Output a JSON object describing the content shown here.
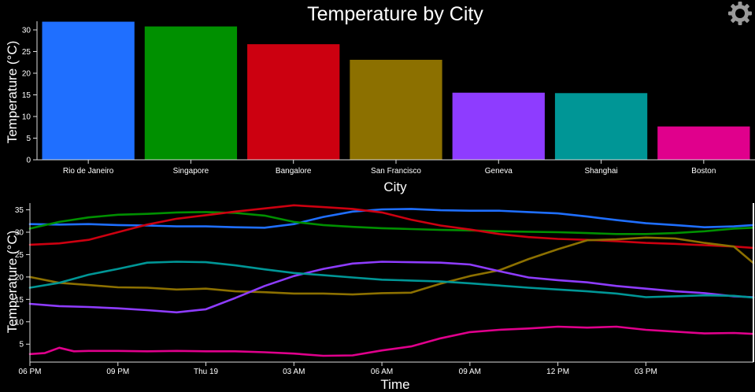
{
  "title": "Temperature by City",
  "settings": {
    "icon": "gear-icon"
  },
  "chart_data": [
    {
      "type": "bar",
      "xlabel": "City",
      "ylabel": "Temperature (°C)",
      "categories": [
        "Rio de Janeiro",
        "Singapore",
        "Bangalore",
        "San Francisco",
        "Geneva",
        "Shanghai",
        "Boston"
      ],
      "values": [
        31.9,
        30.8,
        26.7,
        23.1,
        15.5,
        15.4,
        7.7
      ],
      "colors": [
        "#1f6fff",
        "#009000",
        "#cc0010",
        "#8c7000",
        "#8e3cff",
        "#009696",
        "#e0008c"
      ],
      "ylim": [
        0,
        32
      ],
      "yticks": [
        0,
        5,
        10,
        15,
        20,
        25,
        30
      ],
      "grid": false
    },
    {
      "type": "line",
      "xlabel": "Time",
      "ylabel": "Temperature (°C)",
      "ylim": [
        1,
        36.5
      ],
      "yticks": [
        5,
        10,
        15,
        20,
        25,
        30,
        35
      ],
      "xlim": [
        "2018-04-18T18:00",
        "2018-04-19T18:40"
      ],
      "xticks": [
        {
          "t": "2018-04-18T18:00",
          "label": "06 PM"
        },
        {
          "t": "2018-04-18T21:00",
          "label": "09 PM"
        },
        {
          "t": "2018-04-19T00:00",
          "label": "Thu 19"
        },
        {
          "t": "2018-04-19T03:00",
          "label": "03 AM"
        },
        {
          "t": "2018-04-19T06:00",
          "label": "06 AM"
        },
        {
          "t": "2018-04-19T09:00",
          "label": "09 AM"
        },
        {
          "t": "2018-04-19T12:00",
          "label": "12 PM"
        },
        {
          "t": "2018-04-19T15:00",
          "label": "03 PM"
        }
      ],
      "grid": false,
      "series": [
        {
          "color": "#1f6fff",
          "points": [
            [
              "2018-04-18T18:00",
              31.8
            ],
            [
              "2018-04-18T19:00",
              31.7
            ],
            [
              "2018-04-18T20:00",
              31.8
            ],
            [
              "2018-04-18T21:00",
              31.6
            ],
            [
              "2018-04-18T22:00",
              31.5
            ],
            [
              "2018-04-18T23:00",
              31.3
            ],
            [
              "2018-04-19T00:00",
              31.3
            ],
            [
              "2018-04-19T01:00",
              31.1
            ],
            [
              "2018-04-19T02:00",
              31.0
            ],
            [
              "2018-04-19T03:00",
              31.8
            ],
            [
              "2018-04-19T04:00",
              33.4
            ],
            [
              "2018-04-19T05:00",
              34.6
            ],
            [
              "2018-04-19T06:00",
              35.1
            ],
            [
              "2018-04-19T07:00",
              35.2
            ],
            [
              "2018-04-19T08:00",
              34.9
            ],
            [
              "2018-04-19T09:00",
              34.8
            ],
            [
              "2018-04-19T10:00",
              34.8
            ],
            [
              "2018-04-19T11:00",
              34.5
            ],
            [
              "2018-04-19T12:00",
              34.2
            ],
            [
              "2018-04-19T13:00",
              33.5
            ],
            [
              "2018-04-19T14:00",
              32.7
            ],
            [
              "2018-04-19T15:00",
              32.0
            ],
            [
              "2018-04-19T16:00",
              31.6
            ],
            [
              "2018-04-19T17:00",
              31.1
            ],
            [
              "2018-04-19T18:00",
              31.3
            ],
            [
              "2018-04-19T18:40",
              31.6
            ]
          ]
        },
        {
          "color": "#009000",
          "points": [
            [
              "2018-04-18T18:00",
              30.8
            ],
            [
              "2018-04-18T19:00",
              32.3
            ],
            [
              "2018-04-18T20:00",
              33.3
            ],
            [
              "2018-04-18T21:00",
              33.9
            ],
            [
              "2018-04-18T22:00",
              34.1
            ],
            [
              "2018-04-18T23:00",
              34.4
            ],
            [
              "2018-04-19T00:00",
              34.5
            ],
            [
              "2018-04-19T01:00",
              34.3
            ],
            [
              "2018-04-19T02:00",
              33.7
            ],
            [
              "2018-04-19T03:00",
              32.3
            ],
            [
              "2018-04-19T04:00",
              31.6
            ],
            [
              "2018-04-19T05:00",
              31.2
            ],
            [
              "2018-04-19T06:00",
              30.9
            ],
            [
              "2018-04-19T07:00",
              30.7
            ],
            [
              "2018-04-19T08:00",
              30.5
            ],
            [
              "2018-04-19T09:00",
              30.4
            ],
            [
              "2018-04-19T10:00",
              30.2
            ],
            [
              "2018-04-19T11:00",
              30.1
            ],
            [
              "2018-04-19T12:00",
              30.0
            ],
            [
              "2018-04-19T13:00",
              29.8
            ],
            [
              "2018-04-19T14:00",
              29.6
            ],
            [
              "2018-04-19T15:00",
              29.6
            ],
            [
              "2018-04-19T16:00",
              29.8
            ],
            [
              "2018-04-19T17:00",
              30.2
            ],
            [
              "2018-04-19T18:00",
              30.8
            ],
            [
              "2018-04-19T18:40",
              31.0
            ]
          ]
        },
        {
          "color": "#cc0010",
          "points": [
            [
              "2018-04-18T18:00",
              27.2
            ],
            [
              "2018-04-18T19:00",
              27.5
            ],
            [
              "2018-04-18T20:00",
              28.3
            ],
            [
              "2018-04-18T21:00",
              30.0
            ],
            [
              "2018-04-18T22:00",
              31.7
            ],
            [
              "2018-04-18T23:00",
              33.0
            ],
            [
              "2018-04-19T00:00",
              33.8
            ],
            [
              "2018-04-19T01:00",
              34.6
            ],
            [
              "2018-04-19T02:00",
              35.3
            ],
            [
              "2018-04-19T03:00",
              36.0
            ],
            [
              "2018-04-19T04:00",
              35.6
            ],
            [
              "2018-04-19T05:00",
              35.2
            ],
            [
              "2018-04-19T06:00",
              34.4
            ],
            [
              "2018-04-19T07:00",
              32.8
            ],
            [
              "2018-04-19T08:00",
              31.5
            ],
            [
              "2018-04-19T09:00",
              30.6
            ],
            [
              "2018-04-19T10:00",
              29.6
            ],
            [
              "2018-04-19T11:00",
              28.9
            ],
            [
              "2018-04-19T12:00",
              28.5
            ],
            [
              "2018-04-19T13:00",
              28.3
            ],
            [
              "2018-04-19T14:00",
              28.0
            ],
            [
              "2018-04-19T15:00",
              27.6
            ],
            [
              "2018-04-19T16:00",
              27.4
            ],
            [
              "2018-04-19T17:00",
              27.1
            ],
            [
              "2018-04-19T18:00",
              26.8
            ],
            [
              "2018-04-19T18:40",
              26.5
            ]
          ]
        },
        {
          "color": "#8c7000",
          "points": [
            [
              "2018-04-18T18:00",
              20.0
            ],
            [
              "2018-04-18T19:00",
              18.7
            ],
            [
              "2018-04-18T20:00",
              18.2
            ],
            [
              "2018-04-18T21:00",
              17.7
            ],
            [
              "2018-04-18T22:00",
              17.6
            ],
            [
              "2018-04-18T23:00",
              17.2
            ],
            [
              "2018-04-19T00:00",
              17.4
            ],
            [
              "2018-04-19T01:00",
              16.8
            ],
            [
              "2018-04-19T02:00",
              16.6
            ],
            [
              "2018-04-19T03:00",
              16.3
            ],
            [
              "2018-04-19T04:00",
              16.3
            ],
            [
              "2018-04-19T05:00",
              16.1
            ],
            [
              "2018-04-19T06:00",
              16.4
            ],
            [
              "2018-04-19T07:00",
              16.5
            ],
            [
              "2018-04-19T08:00",
              18.5
            ],
            [
              "2018-04-19T09:00",
              20.2
            ],
            [
              "2018-04-19T10:00",
              21.5
            ],
            [
              "2018-04-19T11:00",
              24.0
            ],
            [
              "2018-04-19T12:00",
              26.2
            ],
            [
              "2018-04-19T13:00",
              28.2
            ],
            [
              "2018-04-19T14:00",
              28.4
            ],
            [
              "2018-04-19T15:00",
              28.8
            ],
            [
              "2018-04-19T16:00",
              28.6
            ],
            [
              "2018-04-19T17:00",
              27.6
            ],
            [
              "2018-04-19T18:00",
              26.8
            ],
            [
              "2018-04-19T18:40",
              23.1
            ]
          ]
        },
        {
          "color": "#8e3cff",
          "points": [
            [
              "2018-04-18T18:00",
              14.0
            ],
            [
              "2018-04-18T19:00",
              13.5
            ],
            [
              "2018-04-18T20:00",
              13.3
            ],
            [
              "2018-04-18T21:00",
              13.0
            ],
            [
              "2018-04-18T22:00",
              12.6
            ],
            [
              "2018-04-18T23:00",
              12.1
            ],
            [
              "2018-04-19T00:00",
              12.8
            ],
            [
              "2018-04-19T01:00",
              15.3
            ],
            [
              "2018-04-19T02:00",
              18.0
            ],
            [
              "2018-04-19T03:00",
              20.2
            ],
            [
              "2018-04-19T04:00",
              21.8
            ],
            [
              "2018-04-19T05:00",
              23.0
            ],
            [
              "2018-04-19T06:00",
              23.4
            ],
            [
              "2018-04-19T07:00",
              23.3
            ],
            [
              "2018-04-19T08:00",
              23.2
            ],
            [
              "2018-04-19T09:00",
              22.8
            ],
            [
              "2018-04-19T10:00",
              21.3
            ],
            [
              "2018-04-19T11:00",
              19.9
            ],
            [
              "2018-04-19T12:00",
              19.3
            ],
            [
              "2018-04-19T13:00",
              18.8
            ],
            [
              "2018-04-19T14:00",
              18.0
            ],
            [
              "2018-04-19T15:00",
              17.4
            ],
            [
              "2018-04-19T16:00",
              16.8
            ],
            [
              "2018-04-19T17:00",
              16.4
            ],
            [
              "2018-04-19T18:00",
              15.7
            ],
            [
              "2018-04-19T18:40",
              15.5
            ]
          ]
        },
        {
          "color": "#009696",
          "points": [
            [
              "2018-04-18T18:00",
              17.6
            ],
            [
              "2018-04-18T19:00",
              18.7
            ],
            [
              "2018-04-18T20:00",
              20.5
            ],
            [
              "2018-04-18T21:00",
              21.8
            ],
            [
              "2018-04-18T22:00",
              23.2
            ],
            [
              "2018-04-18T23:00",
              23.4
            ],
            [
              "2018-04-19T00:00",
              23.3
            ],
            [
              "2018-04-19T01:00",
              22.6
            ],
            [
              "2018-04-19T02:00",
              21.7
            ],
            [
              "2018-04-19T03:00",
              20.9
            ],
            [
              "2018-04-19T04:00",
              20.4
            ],
            [
              "2018-04-19T05:00",
              19.9
            ],
            [
              "2018-04-19T06:00",
              19.4
            ],
            [
              "2018-04-19T07:00",
              19.2
            ],
            [
              "2018-04-19T08:00",
              19.0
            ],
            [
              "2018-04-19T09:00",
              18.6
            ],
            [
              "2018-04-19T10:00",
              18.1
            ],
            [
              "2018-04-19T11:00",
              17.6
            ],
            [
              "2018-04-19T12:00",
              17.2
            ],
            [
              "2018-04-19T13:00",
              16.8
            ],
            [
              "2018-04-19T14:00",
              16.3
            ],
            [
              "2018-04-19T15:00",
              15.5
            ],
            [
              "2018-04-19T16:00",
              15.7
            ],
            [
              "2018-04-19T17:00",
              15.9
            ],
            [
              "2018-04-19T18:00",
              15.8
            ],
            [
              "2018-04-19T18:40",
              15.4
            ]
          ]
        },
        {
          "color": "#e0008c",
          "points": [
            [
              "2018-04-18T18:00",
              2.8
            ],
            [
              "2018-04-18T18:30",
              3.0
            ],
            [
              "2018-04-18T19:00",
              4.2
            ],
            [
              "2018-04-18T19:30",
              3.4
            ],
            [
              "2018-04-18T20:00",
              3.5
            ],
            [
              "2018-04-18T21:00",
              3.5
            ],
            [
              "2018-04-18T22:00",
              3.4
            ],
            [
              "2018-04-18T23:00",
              3.5
            ],
            [
              "2018-04-19T00:00",
              3.4
            ],
            [
              "2018-04-19T01:00",
              3.4
            ],
            [
              "2018-04-19T02:00",
              3.2
            ],
            [
              "2018-04-19T03:00",
              2.9
            ],
            [
              "2018-04-19T04:00",
              2.4
            ],
            [
              "2018-04-19T05:00",
              2.5
            ],
            [
              "2018-04-19T06:00",
              3.6
            ],
            [
              "2018-04-19T07:00",
              4.5
            ],
            [
              "2018-04-19T08:00",
              6.3
            ],
            [
              "2018-04-19T09:00",
              7.7
            ],
            [
              "2018-04-19T10:00",
              8.2
            ],
            [
              "2018-04-19T11:00",
              8.5
            ],
            [
              "2018-04-19T12:00",
              8.9
            ],
            [
              "2018-04-19T13:00",
              8.7
            ],
            [
              "2018-04-19T14:00",
              8.9
            ],
            [
              "2018-04-19T15:00",
              8.2
            ],
            [
              "2018-04-19T16:00",
              7.8
            ],
            [
              "2018-04-19T17:00",
              7.4
            ],
            [
              "2018-04-19T18:00",
              7.5
            ],
            [
              "2018-04-19T18:40",
              7.3
            ]
          ]
        }
      ]
    }
  ]
}
